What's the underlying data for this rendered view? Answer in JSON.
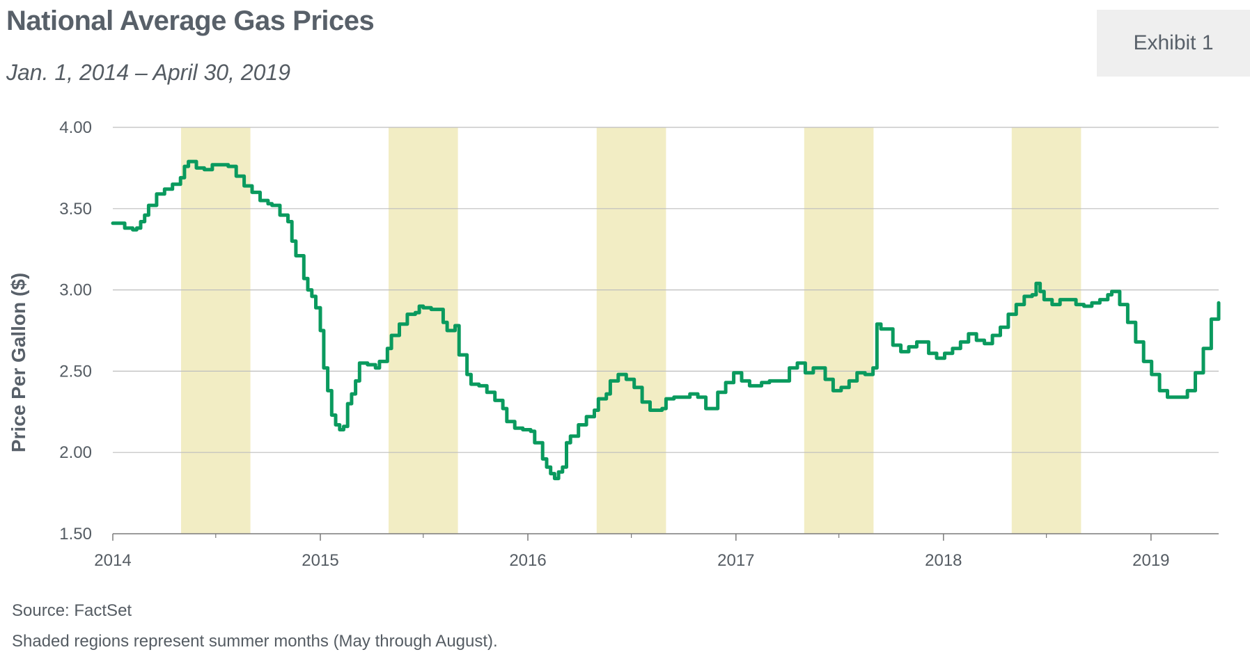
{
  "header": {
    "title": "National Average Gas Prices",
    "subtitle": "Jan. 1, 2014 – April 30, 2019",
    "exhibit": "Exhibit 1"
  },
  "footer": {
    "source": "Source: FactSet",
    "note": "Shaded regions represent summer months (May through August)."
  },
  "colors": {
    "line": "#0a9a5e",
    "shade": "#f2edc4",
    "grid": "#bdbdbd",
    "axis": "#7a7a7a"
  },
  "chart_data": {
    "type": "line",
    "title": "National Average Gas Prices",
    "subtitle": "Jan. 1, 2014 – April 30, 2019",
    "xlabel": "",
    "ylabel": "Price Per Gallon ($)",
    "ylim": [
      1.5,
      4.0
    ],
    "xlim": [
      "2014-01-01",
      "2019-04-30"
    ],
    "yticks": [
      "1.50",
      "2.00",
      "2.50",
      "3.00",
      "3.50",
      "4.00"
    ],
    "xticks": [
      "2014",
      "2015",
      "2016",
      "2017",
      "2018",
      "2019"
    ],
    "grid": "horizontal",
    "shaded_regions": [
      [
        "2014-05-01",
        "2014-08-31"
      ],
      [
        "2015-05-01",
        "2015-08-31"
      ],
      [
        "2016-05-01",
        "2016-08-31"
      ],
      [
        "2017-05-01",
        "2017-08-31"
      ],
      [
        "2018-05-01",
        "2018-08-31"
      ]
    ],
    "series": [
      {
        "points": [
          [
            "2014-01-01",
            3.41
          ],
          [
            "2014-01-15",
            3.41
          ],
          [
            "2014-01-22",
            3.38
          ],
          [
            "2014-02-05",
            3.37
          ],
          [
            "2014-02-12",
            3.38
          ],
          [
            "2014-02-19",
            3.42
          ],
          [
            "2014-02-26",
            3.46
          ],
          [
            "2014-03-05",
            3.52
          ],
          [
            "2014-03-19",
            3.59
          ],
          [
            "2014-04-02",
            3.62
          ],
          [
            "2014-04-16",
            3.65
          ],
          [
            "2014-04-30",
            3.69
          ],
          [
            "2014-05-07",
            3.76
          ],
          [
            "2014-05-14",
            3.79
          ],
          [
            "2014-05-28",
            3.75
          ],
          [
            "2014-06-11",
            3.74
          ],
          [
            "2014-06-25",
            3.77
          ],
          [
            "2014-07-09",
            3.77
          ],
          [
            "2014-07-23",
            3.76
          ],
          [
            "2014-08-06",
            3.7
          ],
          [
            "2014-08-20",
            3.64
          ],
          [
            "2014-09-03",
            3.6
          ],
          [
            "2014-09-17",
            3.55
          ],
          [
            "2014-10-01",
            3.53
          ],
          [
            "2014-10-08",
            3.52
          ],
          [
            "2014-10-22",
            3.46
          ],
          [
            "2014-11-05",
            3.42
          ],
          [
            "2014-11-12",
            3.3
          ],
          [
            "2014-11-19",
            3.21
          ],
          [
            "2014-12-03",
            3.07
          ],
          [
            "2014-12-10",
            3.0
          ],
          [
            "2014-12-17",
            2.96
          ],
          [
            "2014-12-24",
            2.89
          ],
          [
            "2015-01-01",
            2.75
          ],
          [
            "2015-01-07",
            2.52
          ],
          [
            "2015-01-14",
            2.38
          ],
          [
            "2015-01-21",
            2.23
          ],
          [
            "2015-01-28",
            2.17
          ],
          [
            "2015-02-04",
            2.14
          ],
          [
            "2015-02-11",
            2.16
          ],
          [
            "2015-02-18",
            2.3
          ],
          [
            "2015-02-25",
            2.36
          ],
          [
            "2015-03-04",
            2.44
          ],
          [
            "2015-03-11",
            2.55
          ],
          [
            "2015-03-25",
            2.54
          ],
          [
            "2015-04-08",
            2.52
          ],
          [
            "2015-04-15",
            2.56
          ],
          [
            "2015-04-29",
            2.64
          ],
          [
            "2015-05-06",
            2.72
          ],
          [
            "2015-05-20",
            2.79
          ],
          [
            "2015-06-03",
            2.85
          ],
          [
            "2015-06-17",
            2.86
          ],
          [
            "2015-06-24",
            2.9
          ],
          [
            "2015-07-01",
            2.89
          ],
          [
            "2015-07-15",
            2.88
          ],
          [
            "2015-08-05",
            2.8
          ],
          [
            "2015-08-12",
            2.75
          ],
          [
            "2015-08-26",
            2.78
          ],
          [
            "2015-09-02",
            2.6
          ],
          [
            "2015-09-16",
            2.48
          ],
          [
            "2015-09-23",
            2.42
          ],
          [
            "2015-10-07",
            2.41
          ],
          [
            "2015-10-21",
            2.37
          ],
          [
            "2015-11-04",
            2.32
          ],
          [
            "2015-11-18",
            2.27
          ],
          [
            "2015-11-25",
            2.19
          ],
          [
            "2015-12-09",
            2.15
          ],
          [
            "2015-12-23",
            2.14
          ],
          [
            "2016-01-06",
            2.13
          ],
          [
            "2016-01-13",
            2.06
          ],
          [
            "2016-01-27",
            1.96
          ],
          [
            "2016-02-03",
            1.91
          ],
          [
            "2016-02-10",
            1.87
          ],
          [
            "2016-02-17",
            1.84
          ],
          [
            "2016-02-24",
            1.88
          ],
          [
            "2016-03-02",
            1.91
          ],
          [
            "2016-03-09",
            2.06
          ],
          [
            "2016-03-16",
            2.1
          ],
          [
            "2016-03-30",
            2.17
          ],
          [
            "2016-04-13",
            2.22
          ],
          [
            "2016-04-27",
            2.26
          ],
          [
            "2016-05-04",
            2.33
          ],
          [
            "2016-05-18",
            2.36
          ],
          [
            "2016-05-25",
            2.44
          ],
          [
            "2016-06-08",
            2.48
          ],
          [
            "2016-06-22",
            2.45
          ],
          [
            "2016-07-06",
            2.4
          ],
          [
            "2016-07-20",
            2.31
          ],
          [
            "2016-08-03",
            2.26
          ],
          [
            "2016-08-24",
            2.27
          ],
          [
            "2016-08-31",
            2.33
          ],
          [
            "2016-09-14",
            2.34
          ],
          [
            "2016-10-12",
            2.36
          ],
          [
            "2016-10-26",
            2.34
          ],
          [
            "2016-11-09",
            2.27
          ],
          [
            "2016-11-30",
            2.37
          ],
          [
            "2016-12-14",
            2.43
          ],
          [
            "2016-12-28",
            2.49
          ],
          [
            "2017-01-11",
            2.44
          ],
          [
            "2017-01-25",
            2.41
          ],
          [
            "2017-02-15",
            2.43
          ],
          [
            "2017-03-01",
            2.44
          ],
          [
            "2017-03-22",
            2.44
          ],
          [
            "2017-04-05",
            2.52
          ],
          [
            "2017-04-19",
            2.55
          ],
          [
            "2017-05-03",
            2.49
          ],
          [
            "2017-05-17",
            2.52
          ],
          [
            "2017-05-31",
            2.52
          ],
          [
            "2017-06-07",
            2.45
          ],
          [
            "2017-06-21",
            2.38
          ],
          [
            "2017-07-05",
            2.4
          ],
          [
            "2017-07-19",
            2.44
          ],
          [
            "2017-08-02",
            2.49
          ],
          [
            "2017-08-16",
            2.48
          ],
          [
            "2017-08-30",
            2.52
          ],
          [
            "2017-09-06",
            2.79
          ],
          [
            "2017-09-13",
            2.76
          ],
          [
            "2017-10-04",
            2.66
          ],
          [
            "2017-10-18",
            2.62
          ],
          [
            "2017-11-01",
            2.65
          ],
          [
            "2017-11-15",
            2.68
          ],
          [
            "2017-12-06",
            2.61
          ],
          [
            "2017-12-20",
            2.58
          ],
          [
            "2018-01-03",
            2.61
          ],
          [
            "2018-01-17",
            2.64
          ],
          [
            "2018-01-31",
            2.68
          ],
          [
            "2018-02-14",
            2.73
          ],
          [
            "2018-02-28",
            2.69
          ],
          [
            "2018-03-14",
            2.67
          ],
          [
            "2018-03-28",
            2.72
          ],
          [
            "2018-04-11",
            2.77
          ],
          [
            "2018-04-25",
            2.85
          ],
          [
            "2018-05-09",
            2.91
          ],
          [
            "2018-05-23",
            2.96
          ],
          [
            "2018-06-06",
            2.97
          ],
          [
            "2018-06-13",
            3.04
          ],
          [
            "2018-06-20",
            2.99
          ],
          [
            "2018-06-27",
            2.94
          ],
          [
            "2018-07-11",
            2.91
          ],
          [
            "2018-07-25",
            2.94
          ],
          [
            "2018-08-08",
            2.94
          ],
          [
            "2018-08-22",
            2.91
          ],
          [
            "2018-09-05",
            2.9
          ],
          [
            "2018-09-19",
            2.92
          ],
          [
            "2018-10-03",
            2.94
          ],
          [
            "2018-10-17",
            2.97
          ],
          [
            "2018-10-24",
            2.99
          ],
          [
            "2018-11-07",
            2.91
          ],
          [
            "2018-11-21",
            2.8
          ],
          [
            "2018-12-05",
            2.68
          ],
          [
            "2018-12-19",
            2.56
          ],
          [
            "2019-01-02",
            2.48
          ],
          [
            "2019-01-16",
            2.38
          ],
          [
            "2019-01-30",
            2.34
          ],
          [
            "2019-02-20",
            2.34
          ],
          [
            "2019-03-06",
            2.38
          ],
          [
            "2019-03-20",
            2.49
          ],
          [
            "2019-04-03",
            2.64
          ],
          [
            "2019-04-17",
            2.82
          ],
          [
            "2019-04-30",
            2.92
          ]
        ]
      }
    ]
  }
}
